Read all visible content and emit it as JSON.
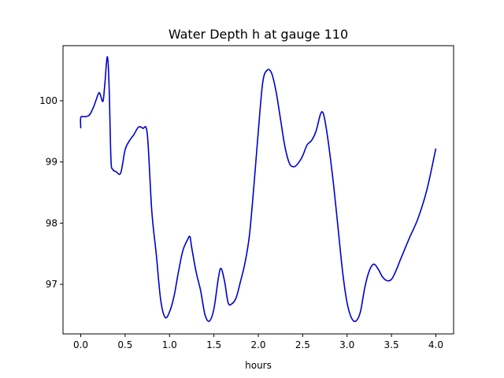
{
  "chart_data": {
    "type": "line",
    "title": "Water Depth h at gauge 110",
    "xlabel": "hours",
    "ylabel": "",
    "xlim": [
      -0.2,
      4.2
    ],
    "ylim": [
      96.19,
      100.9
    ],
    "xticks": [
      0.0,
      0.5,
      1.0,
      1.5,
      2.0,
      2.5,
      3.0,
      3.5,
      4.0
    ],
    "xtick_labels": [
      "0.0",
      "0.5",
      "1.0",
      "1.5",
      "2.0",
      "2.5",
      "3.0",
      "3.5",
      "4.0"
    ],
    "yticks": [
      97,
      98,
      99,
      100
    ],
    "ytick_labels": [
      "97",
      "98",
      "99",
      "100"
    ],
    "grid": false,
    "line_color": "#0000cc",
    "series": [
      {
        "x": [
          0.0,
          0.001,
          0.05,
          0.1,
          0.15,
          0.2,
          0.22,
          0.25,
          0.27,
          0.3,
          0.32,
          0.34,
          0.36,
          0.4,
          0.45,
          0.5,
          0.55,
          0.6,
          0.65,
          0.7,
          0.75,
          0.8,
          0.85,
          0.9,
          0.95,
          1.0,
          1.05,
          1.1,
          1.15,
          1.2,
          1.23,
          1.25,
          1.3,
          1.35,
          1.4,
          1.45,
          1.5,
          1.55,
          1.58,
          1.62,
          1.66,
          1.7,
          1.75,
          1.8,
          1.85,
          1.9,
          1.95,
          2.0,
          2.05,
          2.1,
          2.15,
          2.2,
          2.25,
          2.3,
          2.35,
          2.4,
          2.45,
          2.5,
          2.55,
          2.6,
          2.65,
          2.7,
          2.73,
          2.76,
          2.8,
          2.85,
          2.9,
          2.95,
          3.0,
          3.05,
          3.1,
          3.15,
          3.2,
          3.25,
          3.3,
          3.35,
          3.4,
          3.45,
          3.5,
          3.55,
          3.6,
          3.7,
          3.8,
          3.9,
          4.0
        ],
        "y": [
          99.55,
          99.73,
          99.74,
          99.77,
          99.92,
          100.12,
          100.1,
          99.99,
          100.25,
          100.72,
          100.2,
          99.05,
          98.88,
          98.84,
          98.82,
          99.2,
          99.35,
          99.45,
          99.57,
          99.55,
          99.45,
          98.2,
          97.5,
          96.75,
          96.46,
          96.55,
          96.8,
          97.2,
          97.55,
          97.72,
          97.78,
          97.6,
          97.2,
          96.9,
          96.5,
          96.4,
          96.6,
          97.1,
          97.26,
          97.05,
          96.7,
          96.68,
          96.78,
          97.05,
          97.35,
          97.8,
          98.6,
          99.5,
          100.3,
          100.5,
          100.45,
          100.15,
          99.7,
          99.25,
          98.98,
          98.92,
          98.98,
          99.1,
          99.28,
          99.35,
          99.5,
          99.78,
          99.8,
          99.6,
          99.2,
          98.6,
          97.9,
          97.2,
          96.7,
          96.45,
          96.4,
          96.55,
          96.95,
          97.22,
          97.33,
          97.25,
          97.12,
          97.06,
          97.08,
          97.22,
          97.4,
          97.75,
          98.08,
          98.55,
          99.22
        ]
      }
    ]
  }
}
